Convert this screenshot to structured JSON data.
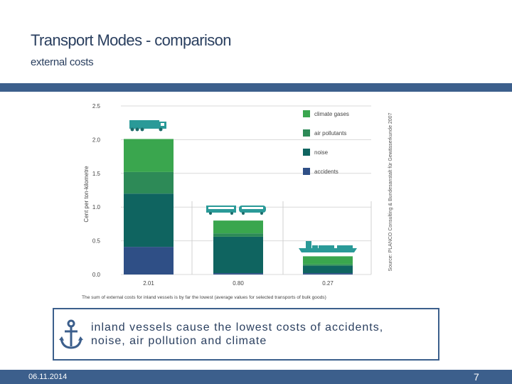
{
  "slide": {
    "title": "Transport Modes - comparison",
    "subtitle": "external costs",
    "callout_line1": "inland vessels cause the lowest costs of accidents,",
    "callout_line2": "noise, air pollution and climate",
    "date": "06.11.2014",
    "page_number": "7"
  },
  "colors": {
    "band": "#3c5f8c",
    "climate_gases": "#3aa64e",
    "air_pollutants": "#2d8a57",
    "noise": "#0f6460",
    "accidents": "#2f4f86",
    "vehicle": "#2a9a98"
  },
  "chart_data": {
    "type": "bar",
    "stacked": true,
    "title": "",
    "ylabel": "Cent per ton-kilometre",
    "ylim": [
      0,
      2.5
    ],
    "yticks": [
      "0.0",
      "0.5",
      "1.0",
      "1.5",
      "2.0",
      "2.5"
    ],
    "categories": [
      "truck",
      "train",
      "inland vessel"
    ],
    "category_icons": [
      "truck-icon",
      "train-icon",
      "ship-icon"
    ],
    "totals": [
      "2.01",
      "0.80",
      "0.27"
    ],
    "series": [
      {
        "name": "accidents",
        "values": [
          0.41,
          0.02,
          0.02
        ]
      },
      {
        "name": "noise",
        "values": [
          0.79,
          0.54,
          0.11
        ]
      },
      {
        "name": "air pollutants",
        "values": [
          0.32,
          0.05,
          0.02
        ]
      },
      {
        "name": "climate gases",
        "values": [
          0.49,
          0.19,
          0.12
        ]
      }
    ],
    "legend_order": [
      "climate gases",
      "air pollutants",
      "noise",
      "accidents"
    ],
    "legend_position": "top-right",
    "caption": "The sum of external costs for inland vessels is by far the lowest (average values for selected transports of bulk goods)",
    "source": "Source: PLANCO Consulting & Bundesanstalt für Gewässerkunde 2007",
    "grid": true
  }
}
